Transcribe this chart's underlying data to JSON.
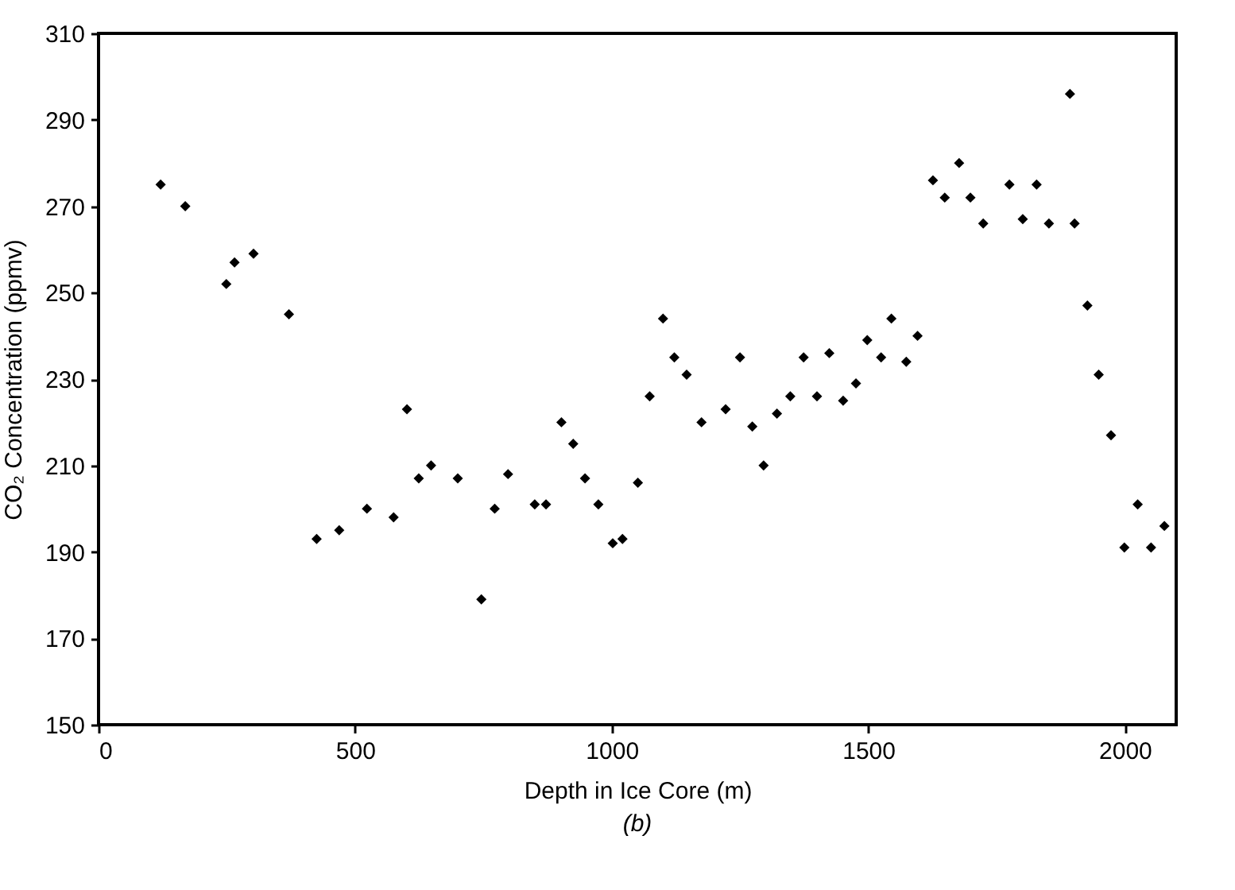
{
  "chart_data": {
    "type": "scatter",
    "xlabel": "Depth in Ice Core (m)",
    "ylabel": "CO₂ Concentration (ppmv)",
    "annotations": [
      "(b)"
    ],
    "x": [
      121,
      169,
      249,
      265,
      302,
      371,
      425,
      469,
      523,
      575,
      601,
      624,
      648,
      700,
      746,
      772,
      798,
      850,
      872,
      902,
      925,
      948,
      974,
      1002,
      1021,
      1051,
      1074,
      1100,
      1122,
      1146,
      1175,
      1222,
      1250,
      1274,
      1296,
      1322,
      1348,
      1374,
      1400,
      1424,
      1451,
      1476,
      1498,
      1525,
      1545,
      1574,
      1596,
      1626,
      1649,
      1677,
      1699,
      1724,
      1775,
      1801,
      1828,
      1852,
      1893,
      1902,
      1927,
      1949,
      1973,
      1999,
      2025,
      2051,
      2077
    ],
    "series": [
      {
        "color": "#000000",
        "values": [
          275,
          270,
          252,
          257,
          259,
          245,
          193,
          195,
          200,
          198,
          223,
          207,
          210,
          207,
          179,
          200,
          208,
          201,
          201,
          220,
          215,
          207,
          201,
          192,
          193,
          206,
          226,
          244,
          235,
          231,
          220,
          223,
          235,
          219,
          210,
          222,
          226,
          235,
          226,
          236,
          225,
          229,
          239,
          235,
          244,
          234,
          240,
          276,
          272,
          280,
          272,
          266,
          275,
          267,
          275,
          266,
          296,
          266,
          247,
          231,
          217,
          191,
          201,
          191,
          196
        ]
      }
    ],
    "xlim": [
      0,
      2100
    ],
    "ylim": [
      150,
      310
    ],
    "xticks": [
      0,
      500,
      1000,
      1500,
      2000
    ],
    "yticks": [
      150,
      170,
      190,
      210,
      230,
      250,
      270,
      290,
      310
    ],
    "marker": "diamond",
    "grid": false
  }
}
